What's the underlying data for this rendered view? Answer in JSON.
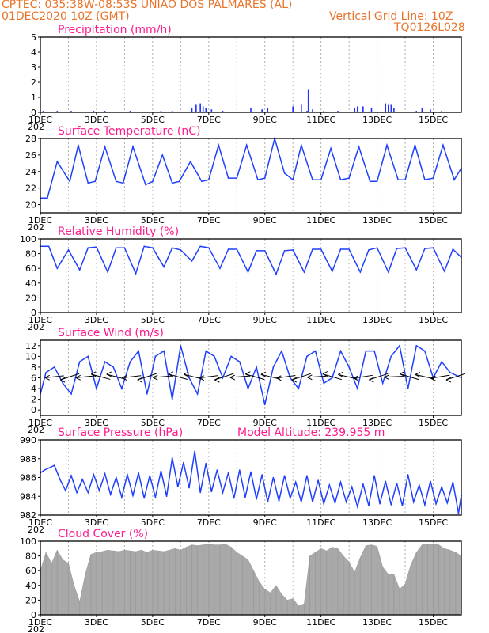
{
  "header": {
    "line1": "CPTEC:   035:38W-08:53S   UNIAO DOS PALMARES (AL)",
    "date": "01DEC2020 10Z (GMT)",
    "grid_note": "Vertical Grid Line: 10Z",
    "code": "TQ0126L028",
    "year_fragment": "202"
  },
  "chart_data": [
    {
      "type": "bar",
      "title": "Precipitation (mm/h)",
      "ylim": [
        0,
        5
      ],
      "yticks": [
        0,
        1,
        2,
        3,
        4,
        5
      ],
      "xticks": [
        "1DEC",
        "3DEC",
        "5DEC",
        "7DEC",
        "9DEC",
        "11DEC",
        "13DEC",
        "15DEC"
      ],
      "x": [
        1.1,
        1.6,
        2.1,
        2.9,
        3.3,
        4.2,
        4.7,
        5.3,
        5.7,
        6.4,
        6.55,
        6.7,
        6.8,
        6.9,
        7.1,
        7.5,
        8.5,
        8.9,
        9.1,
        10.0,
        10.3,
        10.5,
        10.55,
        10.7,
        11.1,
        11.6,
        12.2,
        12.3,
        12.5,
        12.8,
        13.3,
        13.4,
        13.5,
        13.6,
        14.4,
        14.6,
        14.9,
        15.3
      ],
      "values": [
        0.1,
        0.1,
        0.1,
        0.1,
        0.1,
        0.1,
        0.05,
        0.1,
        0.1,
        0.3,
        0.5,
        0.6,
        0.4,
        0.3,
        0.2,
        0.1,
        0.3,
        0.2,
        0.3,
        0.4,
        0.5,
        0.1,
        1.5,
        0.2,
        0.1,
        0.1,
        0.3,
        0.4,
        0.4,
        0.3,
        0.6,
        0.5,
        0.5,
        0.3,
        0.1,
        0.3,
        0.2,
        0.1
      ]
    },
    {
      "type": "line",
      "title": "Surface Temperature (nC)",
      "ylim": [
        19,
        28
      ],
      "yticks": [
        20,
        22,
        24,
        26,
        28
      ],
      "xticks": [
        "1DEC",
        "3DEC",
        "5DEC",
        "7DEC",
        "9DEC",
        "11DEC",
        "13DEC",
        "15DEC"
      ],
      "x": [
        1.0,
        1.25,
        1.6,
        2.05,
        2.35,
        2.7,
        2.95,
        3.3,
        3.7,
        3.95,
        4.3,
        4.75,
        5.0,
        5.35,
        5.7,
        5.95,
        6.35,
        6.75,
        7.0,
        7.35,
        7.7,
        8.0,
        8.35,
        8.75,
        9.0,
        9.35,
        9.7,
        10.0,
        10.3,
        10.7,
        11.0,
        11.35,
        11.7,
        12.0,
        12.35,
        12.75,
        13.0,
        13.35,
        13.75,
        14.0,
        14.35,
        14.7,
        15.0,
        15.35,
        15.75,
        16.0
      ],
      "values": [
        20.8,
        20.8,
        25.2,
        22.8,
        27.2,
        22.6,
        22.8,
        27.0,
        22.8,
        22.6,
        27.0,
        22.4,
        22.8,
        26.0,
        22.6,
        22.8,
        25.2,
        22.8,
        23.0,
        27.2,
        23.2,
        23.2,
        27.2,
        23.0,
        23.2,
        28.0,
        23.8,
        23.0,
        27.2,
        23.0,
        23.0,
        26.8,
        23.0,
        23.2,
        27.0,
        22.8,
        22.8,
        27.2,
        23.0,
        23.0,
        27.2,
        23.0,
        23.2,
        27.2,
        23.0,
        24.4
      ]
    },
    {
      "type": "line",
      "title": "Relative Humidity (%)",
      "ylim": [
        0,
        100
      ],
      "yticks": [
        0,
        20,
        40,
        60,
        80,
        100
      ],
      "xticks": [
        "1DEC",
        "3DEC",
        "5DEC",
        "7DEC",
        "9DEC",
        "11DEC",
        "13DEC",
        "15DEC"
      ],
      "x": [
        1.0,
        1.3,
        1.6,
        2.0,
        2.4,
        2.7,
        3.0,
        3.4,
        3.7,
        4.0,
        4.4,
        4.7,
        5.0,
        5.4,
        5.7,
        6.0,
        6.4,
        6.7,
        7.0,
        7.4,
        7.7,
        8.0,
        8.4,
        8.7,
        9.0,
        9.4,
        9.7,
        10.0,
        10.4,
        10.7,
        11.0,
        11.4,
        11.7,
        12.0,
        12.4,
        12.7,
        13.0,
        13.4,
        13.7,
        14.0,
        14.4,
        14.7,
        15.0,
        15.4,
        15.7,
        16.0
      ],
      "values": [
        90,
        90,
        60,
        85,
        58,
        88,
        89,
        55,
        88,
        88,
        53,
        90,
        88,
        62,
        88,
        85,
        70,
        90,
        88,
        60,
        86,
        86,
        55,
        84,
        84,
        52,
        84,
        85,
        55,
        86,
        86,
        56,
        86,
        86,
        55,
        85,
        88,
        55,
        87,
        88,
        58,
        87,
        88,
        56,
        86,
        75
      ]
    },
    {
      "type": "line",
      "title": "Surface Wind (m/s)",
      "ylim": [
        -1,
        13
      ],
      "yticks": [
        0,
        2,
        4,
        6,
        8,
        10,
        12
      ],
      "xticks": [
        "1DEC",
        "3DEC",
        "5DEC",
        "7DEC",
        "9DEC",
        "11DEC",
        "13DEC",
        "15DEC"
      ],
      "x": [
        1.0,
        1.2,
        1.5,
        1.8,
        2.1,
        2.4,
        2.7,
        3.0,
        3.3,
        3.6,
        3.9,
        4.2,
        4.5,
        4.8,
        5.1,
        5.4,
        5.7,
        6.0,
        6.3,
        6.6,
        6.9,
        7.2,
        7.5,
        7.8,
        8.1,
        8.4,
        8.7,
        9.0,
        9.3,
        9.6,
        9.9,
        10.2,
        10.5,
        10.8,
        11.1,
        11.4,
        11.7,
        12.0,
        12.3,
        12.6,
        12.9,
        13.2,
        13.5,
        13.8,
        14.1,
        14.4,
        14.7,
        15.0,
        15.3,
        15.6,
        16.0
      ],
      "values": [
        3,
        7,
        8,
        5,
        3,
        9,
        10,
        4,
        9,
        8,
        4,
        9,
        11,
        3,
        10,
        11,
        2,
        12,
        6,
        3,
        11,
        10,
        6,
        10,
        9,
        4,
        8,
        1,
        8,
        11,
        6,
        4,
        10,
        11,
        5,
        6,
        11,
        8,
        4,
        11,
        11,
        5,
        10,
        12,
        4,
        12,
        11,
        6,
        9,
        7,
        6
      ]
    },
    {
      "type": "line",
      "title": "Surface Pressure (hPa)",
      "annotation": "Model Altitude: 239.955 m",
      "ylim": [
        982,
        990
      ],
      "yticks": [
        982,
        984,
        986,
        988,
        990
      ],
      "xticks": [
        "1DEC",
        "3DEC",
        "5DEC",
        "7DEC",
        "9DEC",
        "11DEC",
        "13DEC",
        "15DEC"
      ],
      "x": [
        1.0,
        1.15,
        1.3,
        1.5,
        1.7,
        1.9,
        2.1,
        2.3,
        2.5,
        2.7,
        2.9,
        3.1,
        3.3,
        3.5,
        3.7,
        3.9,
        4.1,
        4.3,
        4.5,
        4.7,
        4.9,
        5.1,
        5.3,
        5.5,
        5.7,
        5.9,
        6.1,
        6.3,
        6.5,
        6.7,
        6.9,
        7.1,
        7.3,
        7.5,
        7.7,
        7.9,
        8.1,
        8.3,
        8.5,
        8.7,
        8.9,
        9.1,
        9.3,
        9.5,
        9.7,
        9.9,
        10.1,
        10.3,
        10.5,
        10.7,
        10.9,
        11.1,
        11.3,
        11.5,
        11.7,
        11.9,
        12.1,
        12.3,
        12.5,
        12.7,
        12.9,
        13.1,
        13.3,
        13.5,
        13.7,
        13.9,
        14.1,
        14.3,
        14.5,
        14.7,
        14.9,
        15.1,
        15.3,
        15.5,
        15.7,
        15.9,
        16.0
      ],
      "values": [
        986.5,
        986.8,
        987.0,
        987.3,
        985.8,
        984.6,
        986.2,
        984.4,
        985.8,
        984.4,
        986.3,
        984.6,
        986.4,
        984.2,
        986.0,
        983.9,
        986.3,
        984.1,
        986.5,
        983.8,
        986.2,
        983.9,
        986.7,
        984.0,
        988.1,
        985.0,
        987.6,
        984.9,
        988.8,
        984.4,
        987.5,
        984.5,
        986.8,
        984.4,
        986.5,
        983.8,
        986.8,
        983.9,
        986.6,
        983.7,
        986.3,
        983.4,
        986.0,
        983.5,
        986.2,
        983.8,
        985.5,
        983.4,
        986.2,
        983.4,
        985.7,
        983.2,
        985.2,
        983.3,
        985.5,
        983.4,
        985.0,
        982.9,
        985.3,
        983.0,
        986.2,
        983.2,
        985.6,
        983.1,
        985.4,
        983.0,
        986.3,
        983.4,
        985.2,
        983.1,
        985.6,
        983.2,
        985.0,
        983.3,
        985.5,
        982.2,
        984.1
      ]
    },
    {
      "type": "area",
      "title": "Cloud Cover (%)",
      "ylim": [
        0,
        100
      ],
      "yticks": [
        0,
        20,
        40,
        60,
        80,
        100
      ],
      "xticks": [
        "1DEC",
        "3DEC",
        "5DEC",
        "7DEC",
        "9DEC",
        "11DEC",
        "13DEC",
        "15DEC"
      ],
      "x": [
        1.0,
        1.2,
        1.4,
        1.6,
        1.8,
        2.0,
        2.2,
        2.4,
        2.6,
        2.8,
        3.0,
        3.2,
        3.4,
        3.6,
        3.8,
        4.0,
        4.2,
        4.4,
        4.6,
        4.8,
        5.0,
        5.2,
        5.4,
        5.6,
        5.8,
        6.0,
        6.2,
        6.4,
        6.6,
        6.8,
        7.0,
        7.2,
        7.4,
        7.6,
        7.8,
        8.0,
        8.2,
        8.4,
        8.6,
        8.8,
        9.0,
        9.2,
        9.4,
        9.6,
        9.8,
        10.0,
        10.2,
        10.4,
        10.6,
        10.8,
        11.0,
        11.2,
        11.4,
        11.6,
        11.8,
        12.0,
        12.2,
        12.4,
        12.6,
        12.8,
        13.0,
        13.2,
        13.4,
        13.6,
        13.8,
        14.0,
        14.2,
        14.4,
        14.6,
        14.8,
        15.0,
        15.2,
        15.4,
        15.6,
        15.8,
        16.0
      ],
      "values": [
        60,
        85,
        70,
        88,
        75,
        70,
        40,
        18,
        55,
        82,
        85,
        86,
        88,
        87,
        86,
        88,
        87,
        86,
        88,
        85,
        88,
        87,
        86,
        88,
        90,
        88,
        92,
        95,
        94,
        95,
        96,
        95,
        95,
        96,
        92,
        85,
        80,
        75,
        60,
        45,
        35,
        30,
        40,
        28,
        20,
        22,
        12,
        15,
        80,
        85,
        90,
        87,
        92,
        90,
        80,
        72,
        58,
        78,
        94,
        95,
        93,
        65,
        55,
        55,
        35,
        42,
        68,
        85,
        95,
        96,
        96,
        95,
        90,
        88,
        85,
        80
      ]
    }
  ]
}
